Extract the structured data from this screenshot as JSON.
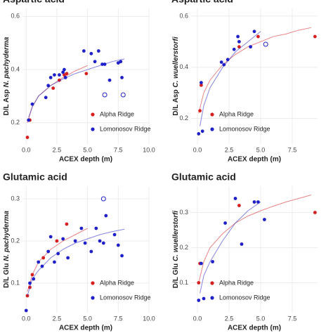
{
  "chart_data": [
    {
      "type": "scatter",
      "title": "Aspartic acid",
      "xlabel": "ACEX depth (m)",
      "ylabel": {
        "prefix": "D/L Asp",
        "species": "N. pachyderma"
      },
      "xlim": [
        -0.3,
        10
      ],
      "ylim": [
        0.12,
        0.63
      ],
      "xticks": [
        {
          "value": 0,
          "label": "0.0"
        },
        {
          "value": 2.5,
          "label": "2.5"
        },
        {
          "value": 5,
          "label": "5.0"
        },
        {
          "value": 7.5,
          "label": "7.5"
        },
        {
          "value": 10,
          "label": "10.0"
        }
      ],
      "yticks": [
        0.2,
        0.4,
        0.6
      ],
      "grid": true,
      "series": [
        {
          "name": "Alpha Ridge",
          "color": "#d62020",
          "x": [
            0.1,
            0.2,
            0.3,
            2.2,
            2.7,
            3.1,
            3.3,
            4.9
          ],
          "values": [
            0.145,
            0.21,
            0.21,
            0.33,
            0.36,
            0.38,
            0.385,
            0.385
          ],
          "fit_x": [
            0.1,
            0.5,
            1,
            2,
            3,
            4,
            5
          ],
          "fit_values": [
            0.2,
            0.26,
            0.3,
            0.34,
            0.37,
            0.395,
            0.415
          ]
        },
        {
          "name": "Lomonosov Ridge",
          "color": "#2020c8",
          "x": [
            0.2,
            0.5,
            1.6,
            1.8,
            2.0,
            2.3,
            2.7,
            3.0,
            3.1,
            3.2,
            4.7,
            5.3,
            5.6,
            5.9,
            6.2,
            6.4,
            6.8,
            7.5,
            7.7,
            7.8
          ],
          "values": [
            0.21,
            0.27,
            0.295,
            0.34,
            0.37,
            0.38,
            0.38,
            0.39,
            0.4,
            0.37,
            0.47,
            0.46,
            0.43,
            0.47,
            0.42,
            0.42,
            0.36,
            0.425,
            0.43,
            0.37
          ],
          "outlier_x": [
            6.4,
            7.9
          ],
          "outlier_values": [
            0.305,
            0.305
          ],
          "fit_x": [
            0.2,
            0.5,
            1,
            2,
            3,
            4,
            5,
            6,
            7,
            8
          ],
          "fit_values": [
            0.22,
            0.26,
            0.3,
            0.34,
            0.365,
            0.385,
            0.4,
            0.415,
            0.43,
            0.44
          ]
        }
      ]
    },
    {
      "type": "scatter",
      "title": "Aspartic acid",
      "xlabel": "ACEX depth (m)",
      "ylabel": {
        "prefix": "D/L Asp",
        "species": "C. wuellerstorfi"
      },
      "xlim": [
        -0.5,
        9.5
      ],
      "ylim": [
        0.1,
        0.63
      ],
      "xticks": [
        {
          "value": 0,
          "label": "0.0"
        },
        {
          "value": 2.5,
          "label": "2.5"
        },
        {
          "value": 5,
          "label": "5.0"
        },
        {
          "value": 7.5,
          "label": "7.5"
        }
      ],
      "yticks": [
        0.2,
        0.4,
        0.6
      ],
      "grid": true,
      "series": [
        {
          "name": "Alpha Ridge",
          "color": "#d62020",
          "x": [
            0.2,
            0.3,
            3.3,
            4.8,
            9.3
          ],
          "values": [
            0.23,
            0.33,
            0.48,
            0.52,
            0.52
          ],
          "fit_x": [
            0.1,
            0.5,
            1,
            2,
            3,
            4,
            5,
            6,
            7,
            8,
            9
          ],
          "fit_values": [
            0.22,
            0.3,
            0.35,
            0.41,
            0.45,
            0.48,
            0.5,
            0.52,
            0.53,
            0.545,
            0.555
          ]
        },
        {
          "name": "Lomonosov Ridge",
          "color": "#2020c8",
          "x": [
            0.1,
            0.4,
            0.3,
            1.9,
            2.1,
            2.4,
            2.9,
            3.2,
            3.3,
            4.2,
            4.5
          ],
          "values": [
            0.14,
            0.15,
            0.34,
            0.42,
            0.41,
            0.43,
            0.47,
            0.52,
            0.5,
            0.48,
            0.54
          ],
          "outlier_x": [
            5.4
          ],
          "outlier_values": [
            0.49
          ],
          "fit_x": [
            0.2,
            0.5,
            1,
            2,
            3,
            4,
            5
          ],
          "fit_values": [
            0.17,
            0.25,
            0.32,
            0.4,
            0.46,
            0.5,
            0.54
          ]
        }
      ]
    },
    {
      "type": "scatter",
      "title": "Glutamic acid",
      "xlabel": "ACEX depth (m)",
      "ylabel": {
        "prefix": "D/L Glu",
        "species": "N. pachyderma"
      },
      "xlim": [
        -0.3,
        10
      ],
      "ylim": [
        0.03,
        0.33
      ],
      "xticks": [
        {
          "value": 0,
          "label": "0.0"
        },
        {
          "value": 2.5,
          "label": "2.5"
        },
        {
          "value": 5,
          "label": "5.0"
        },
        {
          "value": 7.5,
          "label": "7.5"
        },
        {
          "value": 10,
          "label": "10.0"
        }
      ],
      "yticks": [
        0.1,
        0.2,
        0.3
      ],
      "grid": true,
      "series": [
        {
          "name": "Alpha Ridge",
          "color": "#d62020",
          "x": [
            0.1,
            0.3,
            0.5,
            1.4,
            2.5,
            3.3
          ],
          "values": [
            0.07,
            0.09,
            0.12,
            0.16,
            0.2,
            0.24
          ],
          "fit_x": [
            0.1,
            0.5,
            1,
            2,
            3,
            4,
            5
          ],
          "fit_values": [
            0.08,
            0.12,
            0.15,
            0.18,
            0.2,
            0.215,
            0.23
          ]
        },
        {
          "name": "Lomonosov Ridge",
          "color": "#2020c8",
          "x": [
            0.0,
            0.3,
            0.6,
            1.0,
            1.3,
            1.8,
            2.0,
            2.3,
            2.6,
            3.0,
            3.4,
            4.0,
            4.5,
            4.8,
            5.3,
            5.7,
            6.0,
            6.3,
            6.5,
            7.2,
            7.5,
            7.8
          ],
          "values": [
            0.035,
            0.1,
            0.11,
            0.15,
            0.14,
            0.175,
            0.21,
            0.15,
            0.17,
            0.205,
            0.16,
            0.2,
            0.23,
            0.195,
            0.175,
            0.23,
            0.2,
            0.195,
            0.26,
            0.215,
            0.19,
            0.165
          ],
          "outlier_x": [
            6.3
          ],
          "outlier_values": [
            0.3
          ],
          "fit_x": [
            0.1,
            0.5,
            1,
            2,
            3,
            4,
            5,
            6,
            7,
            8
          ],
          "fit_values": [
            0.07,
            0.11,
            0.13,
            0.16,
            0.18,
            0.195,
            0.205,
            0.215,
            0.222,
            0.228
          ]
        }
      ]
    },
    {
      "type": "scatter",
      "title": "Glutamic acid",
      "xlabel": "ACEX depth (m)",
      "ylabel": {
        "prefix": "D/L Glu",
        "species": "C. wuellerstorfi"
      },
      "xlim": [
        -0.5,
        9.5
      ],
      "ylim": [
        0.015,
        0.375
      ],
      "xticks": [
        {
          "value": 0,
          "label": "0.0"
        },
        {
          "value": 2.5,
          "label": "2.5"
        },
        {
          "value": 5,
          "label": "5.0"
        },
        {
          "value": 7.5,
          "label": "7.5"
        }
      ],
      "yticks": [
        0.1,
        0.2,
        0.3
      ],
      "grid": true,
      "series": [
        {
          "name": "Alpha Ridge",
          "color": "#d62020",
          "x": [
            0.1,
            0.2,
            3.3,
            9.3
          ],
          "values": [
            0.1,
            0.155,
            0.32,
            0.3
          ],
          "fit_x": [
            0.1,
            0.5,
            1,
            2,
            3,
            4,
            5,
            6,
            7,
            8,
            9
          ],
          "fit_values": [
            0.1,
            0.16,
            0.2,
            0.24,
            0.27,
            0.29,
            0.305,
            0.318,
            0.33,
            0.34,
            0.35
          ]
        },
        {
          "name": "Lomonosov Ridge",
          "color": "#2020c8",
          "x": [
            0.1,
            0.3,
            0.5,
            1.2,
            2.2,
            3.0,
            3.5,
            4.5,
            4.8,
            5.3
          ],
          "values": [
            0.05,
            0.155,
            0.055,
            0.16,
            0.27,
            0.34,
            0.21,
            0.33,
            0.33,
            0.28
          ],
          "fit_x": [
            0.2,
            0.5,
            1,
            2,
            3,
            4,
            5
          ],
          "fit_values": [
            0.07,
            0.12,
            0.16,
            0.22,
            0.27,
            0.305,
            0.33
          ]
        }
      ]
    }
  ]
}
